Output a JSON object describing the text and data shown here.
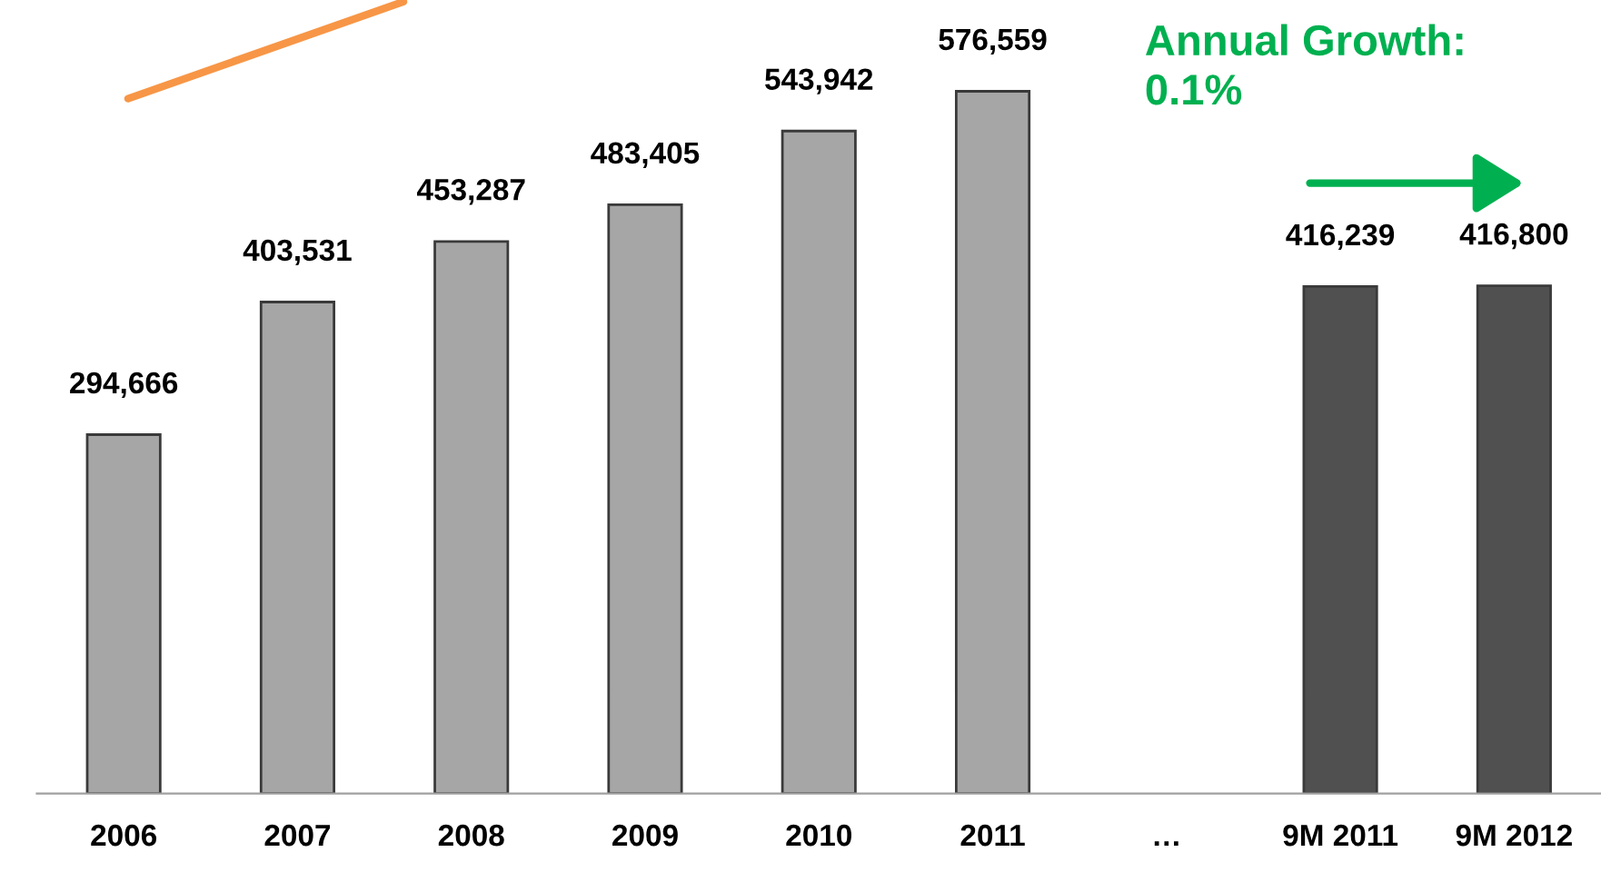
{
  "chart_data": {
    "type": "bar",
    "categories": [
      "2006",
      "2007",
      "2008",
      "2009",
      "2010",
      "2011",
      "…",
      "9M 2011",
      "9M 2012"
    ],
    "values": [
      294666,
      403531,
      453287,
      483405,
      543942,
      576559,
      null,
      416239,
      416800
    ],
    "colors": [
      "#a6a6a6",
      "#a6a6a6",
      "#a6a6a6",
      "#a6a6a6",
      "#a6a6a6",
      "#a6a6a6",
      "#a6a6a6",
      "#505050",
      "#505050"
    ],
    "value_labels": [
      "294,666",
      "403,531",
      "453,287",
      "483,405",
      "543,942",
      "576,559",
      null,
      "416,239",
      "416,800"
    ],
    "annotations": [
      "Annual Growth:\n0.1%"
    ],
    "grid": false,
    "legend": false
  }
}
